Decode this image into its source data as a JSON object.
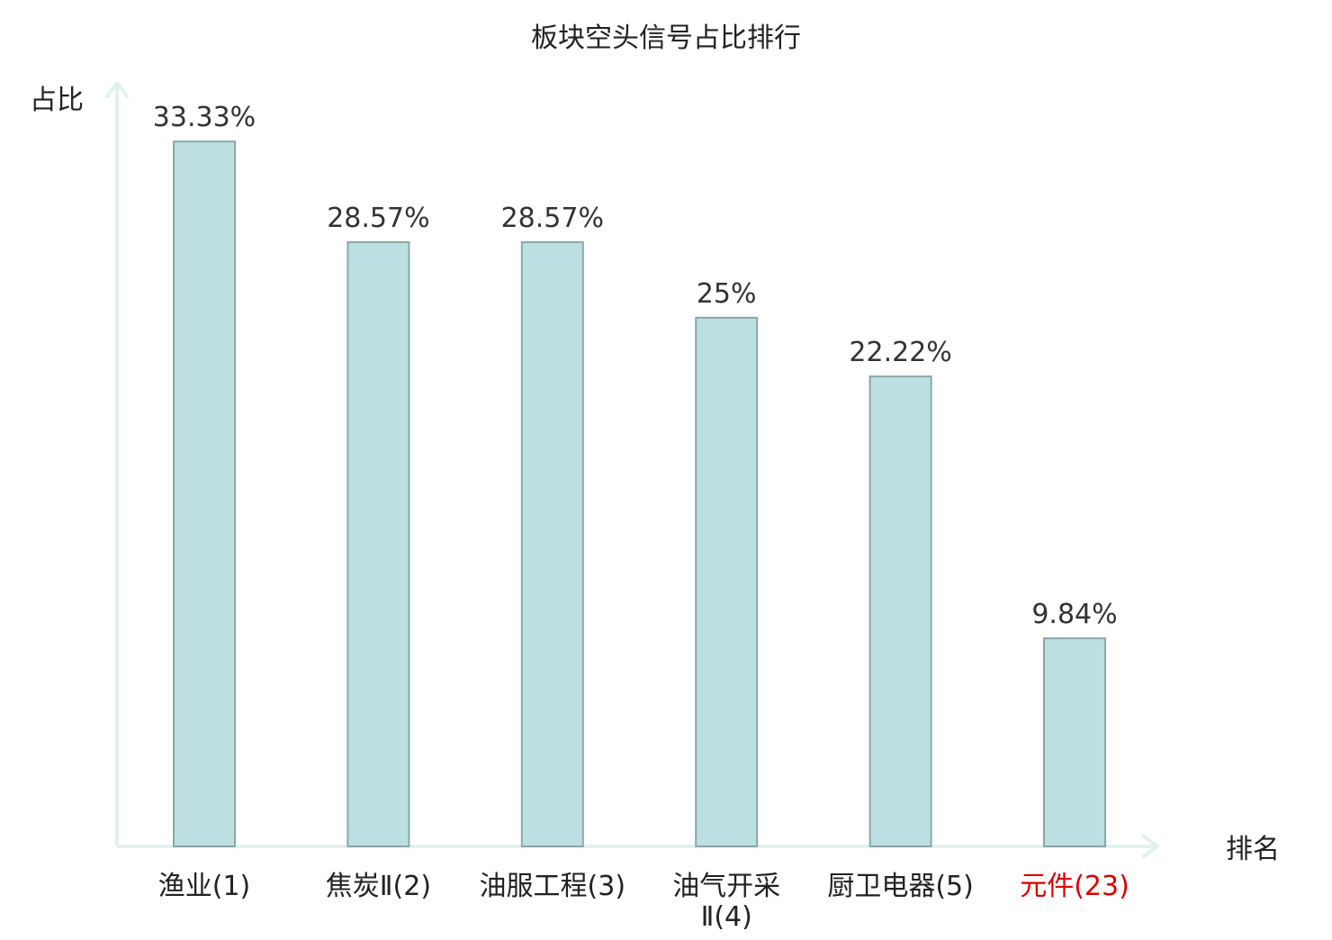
{
  "chart_data": {
    "type": "bar",
    "title": "板块空头信号占比排行",
    "ylabel": "占比",
    "xlabel": "排名",
    "categories": [
      {
        "lines": [
          "渔业(1)"
        ],
        "highlight": false
      },
      {
        "lines": [
          "焦炭Ⅱ(2)"
        ],
        "highlight": false
      },
      {
        "lines": [
          "油服工程(3)"
        ],
        "highlight": false
      },
      {
        "lines": [
          "油气开采",
          "Ⅱ(4)"
        ],
        "highlight": false
      },
      {
        "lines": [
          "厨卫电器(5)"
        ],
        "highlight": false
      },
      {
        "lines": [
          "元件(23)"
        ],
        "highlight": true
      }
    ],
    "values": [
      33.33,
      28.57,
      28.57,
      25,
      22.22,
      9.84
    ],
    "value_labels": [
      "33.33%",
      "28.57%",
      "28.57%",
      "25%",
      "22.22%",
      "9.84%"
    ],
    "ylim": [
      0,
      35
    ],
    "grid": false,
    "legend": "none"
  },
  "colors": {
    "bar_fill": "#bce0e2",
    "bar_stroke": "#88a8aa",
    "axis": "#e0f2ef",
    "text": "#222222",
    "value_text": "#333333",
    "highlight_text": "#dd0000"
  }
}
